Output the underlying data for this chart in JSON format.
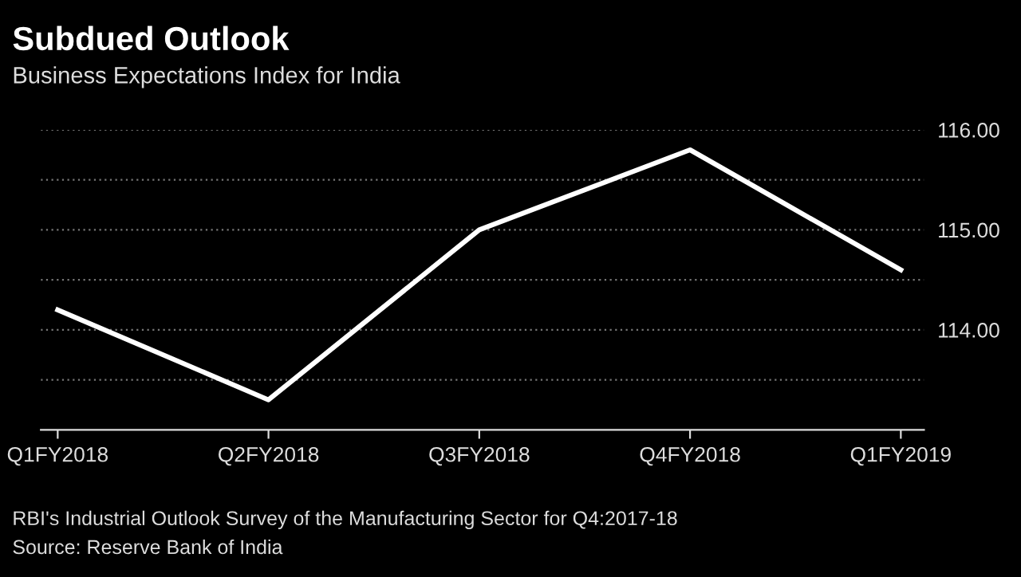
{
  "chart_data": {
    "type": "line",
    "title": "Subdued Outlook",
    "subtitle": "Business Expectations Index for India",
    "categories": [
      "Q1FY2018",
      "Q2FY2018",
      "Q3FY2018",
      "Q4FY2018",
      "Q1FY2019"
    ],
    "series": [
      {
        "color": "#ffffff",
        "values": [
          114.2,
          113.3,
          115.0,
          115.8,
          114.6
        ]
      }
    ],
    "ylim": [
      113.0,
      116.0
    ],
    "yticks": [
      {
        "value": 113.5,
        "label": null
      },
      {
        "value": 114,
        "label": "114.00"
      },
      {
        "value": 114.5,
        "label": null
      },
      {
        "value": 115,
        "label": "115.00"
      },
      {
        "value": 115.5,
        "label": null
      },
      {
        "value": 116,
        "label": "116.00"
      }
    ],
    "grid": "y",
    "marker": "none",
    "line_style": "solid",
    "annotations": [
      "RBI's Industrial Outlook Survey of the Manufacturing Sector for Q4:2017-18",
      "Source: Reserve Bank of India"
    ]
  }
}
